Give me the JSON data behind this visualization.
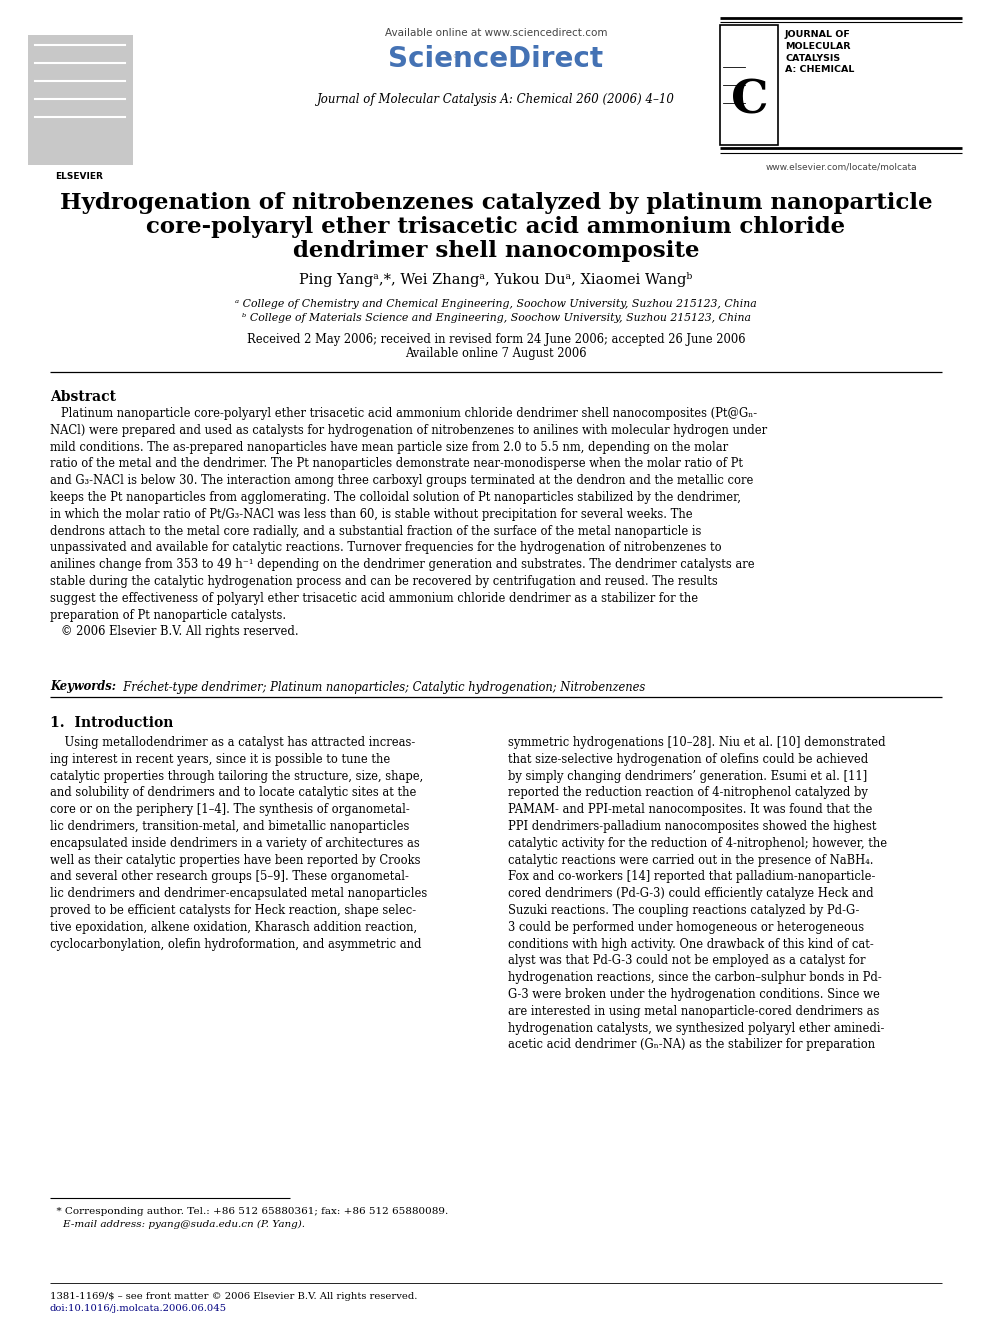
{
  "bg_color": "#ffffff",
  "header_available_text": "Available online at www.sciencedirect.com",
  "header_journal_text": "Journal of Molecular Catalysis A: Chemical 260 (2006) 4–10",
  "header_url_text": "www.elsevier.com/locate/molcata",
  "title_line1": "Hydrogenation of nitrobenzenes catalyzed by platinum nanoparticle",
  "title_line2": "core-polyaryl ether trisacetic acid ammonium chloride",
  "title_line3": "dendrimer shell nanocomposite",
  "authors": "Ping Yangᵃ,*, Wei Zhangᵃ, Yukou Duᵃ, Xiaomei Wangᵇ",
  "affil_a": "ᵃ College of Chemistry and Chemical Engineering, Soochow University, Suzhou 215123, China",
  "affil_b": "ᵇ College of Materials Science and Engineering, Soochow University, Suzhou 215123, China",
  "dates": "Received 2 May 2006; received in revised form 24 June 2006; accepted 26 June 2006",
  "available_online": "Available online 7 August 2006",
  "abstract_title": "Abstract",
  "abstract_text": "Platinum nanoparticle core-polyaryl ether trisacetic acid ammonium chloride dendrimer shell nanocomposites (Pt@Gₙ-NACl) were prepared and used as catalysts for hydrogenation of nitrobenzenes to anilines with molecular hydrogen under mild conditions. The as-prepared nanoparticles have mean particle size from 2.0 to 5.5 nm, depending on the molar ratio of the metal and the dendrimer. The Pt nanoparticles demonstrate near-monodisperse when the molar ratio of Pt and G₃-NACl is below 30. The interaction among three carboxyl groups terminated at the dendron and the metallic core keeps the Pt nanoparticles from agglomerating. The colloidal solution of Pt nanoparticles stabilized by the dendrimer, in which the molar ratio of Pt/G₃-NACl was less than 60, is stable without precipitation for several weeks. The dendrons attach to the metal core radially, and a substantial fraction of the surface of the metal nanoparticle is unpassivated and available for catalytic reactions. Turnover frequencies for the hydrogenation of nitrobenzenes to anilines change from 353 to 49 h⁻¹ depending on the dendrimer generation and substrates. The dendrimer catalysts are stable during the catalytic hydrogenation process and can be recovered by centrifugation and reused. The results suggest the effectiveness of polyaryl ether trisacetic acid ammonium chloride dendrimer as a stabilizer for the preparation of Pt nanoparticle catalysts.\n© 2006 Elsevier B.V. All rights reserved.",
  "keywords_label": "Keywords:",
  "keywords_text": "Fréchet-type dendrimer; Platinum nanoparticles; Catalytic hydrogenation; Nitrobenzenes",
  "section1_title": "1.  Introduction",
  "intro_col1": "    Using metallodendrimer as a catalyst has attracted increas-\ning interest in recent years, since it is possible to tune the\ncatalytic properties through tailoring the structure, size, shape,\nand solubility of dendrimers and to locate catalytic sites at the\ncore or on the periphery [1–4]. The synthesis of organometal-\nlic dendrimers, transition-metal, and bimetallic nanoparticles\nencapsulated inside dendrimers in a variety of architectures as\nwell as their catalytic properties have been reported by Crooks\nand several other research groups [5–9]. These organometal-\nlic dendrimers and dendrimer-encapsulated metal nanoparticles\nproved to be efficient catalysts for Heck reaction, shape selec-\ntive epoxidation, alkene oxidation, Kharasch addition reaction,\ncyclocarbonylation, olefin hydroformation, and asymmetric and",
  "intro_col2": "symmetric hydrogenations [10–28]. Niu et al. [10] demonstrated\nthat size-selective hydrogenation of olefins could be achieved\nby simply changing dendrimers’ generation. Esumi et al. [11]\nreported the reduction reaction of 4-nitrophenol catalyzed by\nPAMAM- and PPI-metal nanocomposites. It was found that the\nPPI dendrimers-palladium nanocomposites showed the highest\ncatalytic activity for the reduction of 4-nitrophenol; however, the\ncatalytic reactions were carried out in the presence of NaBH₄.\nFox and co-workers [14] reported that palladium-nanoparticle-\ncored dendrimers (Pd-G-3) could efficiently catalyze Heck and\nSuzuki reactions. The coupling reactions catalyzed by Pd-G-\n3 could be performed under homogeneous or heterogeneous\nconditions with high activity. One drawback of this kind of cat-\nalyst was that Pd-G-3 could not be employed as a catalyst for\nhydrogenation reactions, since the carbon–sulphur bonds in Pd-\nG-3 were broken under the hydrogenation conditions. Since we\nare interested in using metal nanoparticle-cored dendrimers as\nhydrogenation catalysts, we synthesized polyaryl ether aminedi-\nacetic acid dendrimer (Gₙ-NA) as the stabilizer for preparation",
  "footnote_star": "  * Corresponding author. Tel.: +86 512 65880361; fax: +86 512 65880089.",
  "footnote_email": "    E-mail address: pyang@suda.edu.cn (P. Yang).",
  "footnote_issn": "1381-1169/$ – see front matter © 2006 Elsevier B.V. All rights reserved.",
  "footnote_doi": "doi:10.1016/j.molcata.2006.06.045",
  "doi_color": "#000080",
  "sciencedirect_color": "#4472b4",
  "title_color": "#000000",
  "text_color": "#000000",
  "ref_color": "#1a56a0"
}
